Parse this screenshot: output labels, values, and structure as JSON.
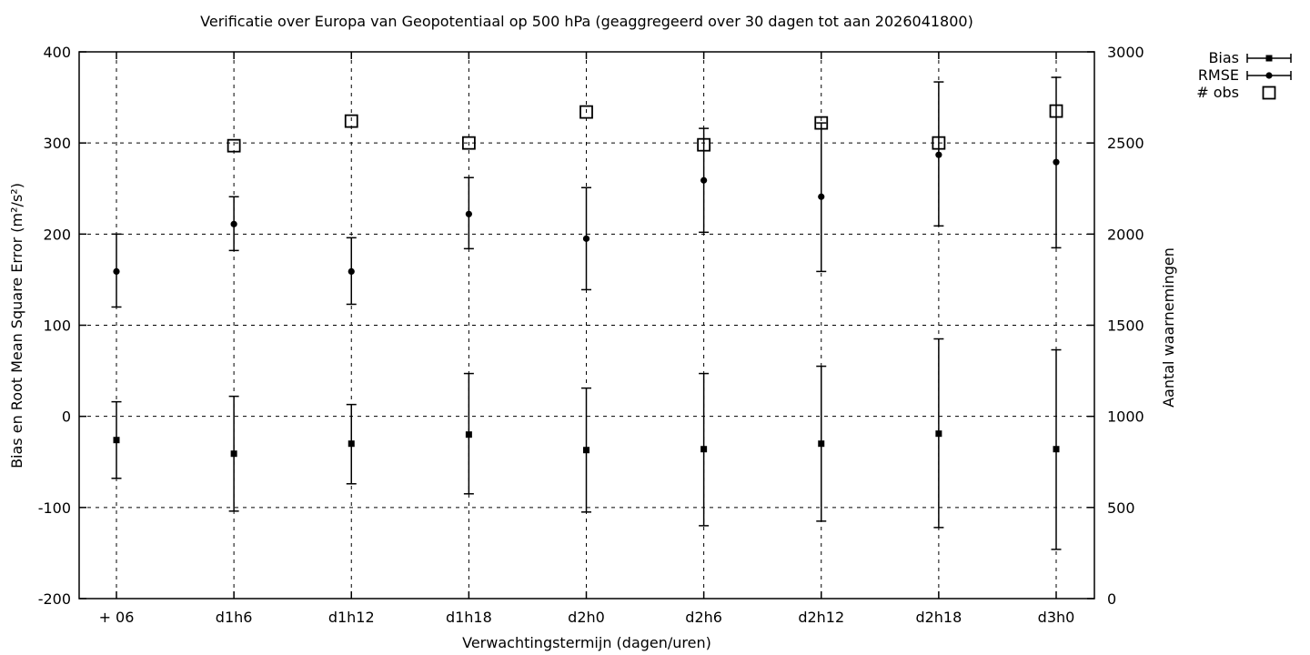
{
  "title": "Verificatie over Europa van Geopotentiaal op 500 hPa (geaggregeerd over 30 dagen tot aan 2026041800)",
  "colors": {
    "ink": "#000000",
    "background": "#ffffff"
  },
  "axes": {
    "x": {
      "label": "Verwachtingstermijn (dagen/uren)",
      "categories": [
        "+ 06",
        "d1h6",
        "d1h12",
        "d1h18",
        "d2h0",
        "d2h6",
        "d2h12",
        "d2h18",
        "d3h0"
      ]
    },
    "y_left": {
      "label": "Bias en Root Mean Square Error (m²/s²)",
      "min": -200,
      "max": 400,
      "tick_step": 100,
      "ticks": [
        400,
        300,
        200,
        100,
        0,
        -100,
        -200
      ]
    },
    "y_right": {
      "label": "Aantal waarnemingen",
      "min": 0,
      "max": 3000,
      "tick_step": 500,
      "ticks": [
        3000,
        2500,
        2000,
        1500,
        1000,
        500,
        0
      ]
    }
  },
  "legend": {
    "position": "top-right-outside",
    "items": [
      {
        "label": "Bias",
        "marker": "filled-square",
        "errorbar": true
      },
      {
        "label": "RMSE",
        "marker": "filled-circle",
        "errorbar": true
      },
      {
        "label": "# obs",
        "marker": "open-square",
        "errorbar": false
      }
    ]
  },
  "chart_data": {
    "type": "scatter",
    "grid": true,
    "categories": [
      "+ 06",
      "d1h6",
      "d1h12",
      "d1h18",
      "d2h0",
      "d2h6",
      "d2h12",
      "d2h18",
      "d3h0"
    ],
    "y_left_range": [
      -200,
      400
    ],
    "y_right_range": [
      0,
      3000
    ],
    "series": [
      {
        "name": "Bias",
        "axis": "left",
        "marker": "filled-square",
        "values": [
          -26,
          -41,
          -30,
          -20,
          -37,
          -36,
          -30,
          -19,
          -36
        ],
        "err_low": [
          -68,
          -104,
          -74,
          -85,
          -105,
          -120,
          -115,
          -122,
          -146
        ],
        "err_high": [
          16,
          22,
          13,
          47,
          31,
          47,
          55,
          85,
          73
        ]
      },
      {
        "name": "RMSE",
        "axis": "left",
        "marker": "filled-circle",
        "values": [
          159,
          211,
          159,
          222,
          195,
          259,
          241,
          287,
          279
        ],
        "err_low": [
          120,
          182,
          123,
          184,
          139,
          202,
          159,
          209,
          185
        ],
        "err_high": [
          200,
          241,
          196,
          262,
          251,
          316,
          322,
          367,
          372
        ]
      },
      {
        "name": "# obs",
        "axis": "right",
        "marker": "open-square",
        "values": [
          null,
          2485,
          2620,
          2500,
          2670,
          2490,
          2610,
          2500,
          2675
        ]
      }
    ]
  }
}
